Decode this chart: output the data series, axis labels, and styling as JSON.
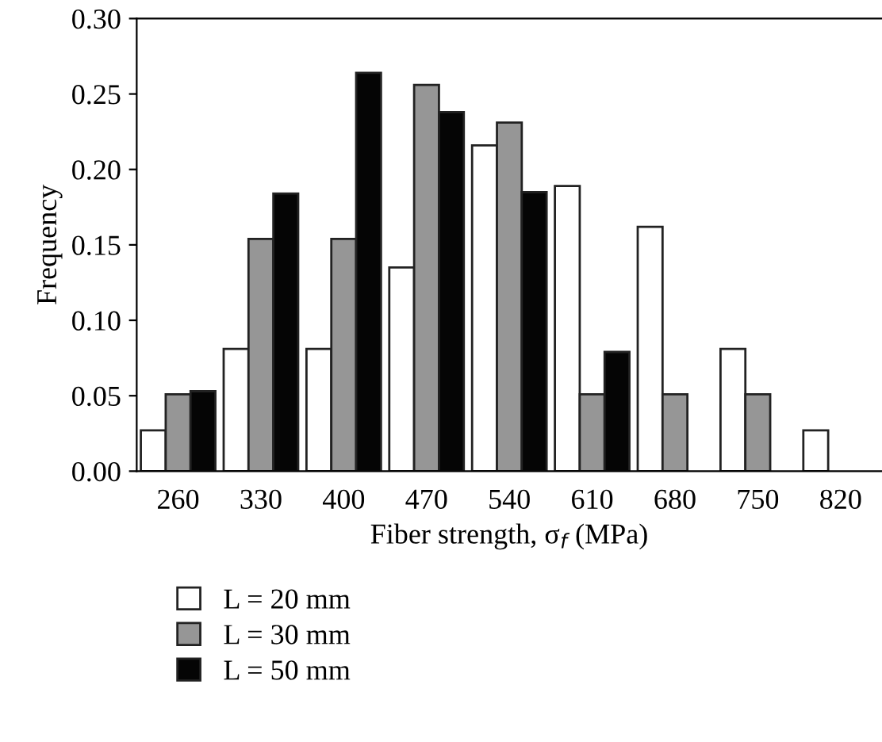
{
  "chart_data": {
    "type": "bar",
    "xlabel": "Fiber strength, σ$_{f}$ (MPa)",
    "ylabel": "Frequency",
    "categories": [
      "260",
      "330",
      "400",
      "470",
      "540",
      "610",
      "680",
      "750",
      "820"
    ],
    "series": [
      {
        "name": "L = 20 mm",
        "color": "#ffffff",
        "values": [
          0.027,
          0.081,
          0.081,
          0.135,
          0.216,
          0.189,
          0.162,
          0.081,
          0.027
        ]
      },
      {
        "name": "L = 30 mm",
        "color": "#969696",
        "values": [
          0.051,
          0.154,
          0.154,
          0.256,
          0.231,
          0.051,
          0.051,
          0.051,
          null
        ]
      },
      {
        "name": "L = 50 mm",
        "color": "#050505",
        "values": [
          0.053,
          0.184,
          0.264,
          0.238,
          0.185,
          0.079,
          null,
          null,
          null
        ]
      }
    ],
    "ylim": [
      0,
      0.3
    ],
    "yticks": [
      {
        "value": 0,
        "label": "0.00"
      },
      {
        "value": 0.05,
        "label": "0.05"
      },
      {
        "value": 0.1,
        "label": "0.10"
      },
      {
        "value": 0.15,
        "label": "0.15"
      },
      {
        "value": 0.2,
        "label": "0.20"
      },
      {
        "value": 0.25,
        "label": "0.25"
      },
      {
        "value": 0.3,
        "label": "0.30"
      }
    ],
    "grid": false,
    "legend": "bottom left"
  }
}
